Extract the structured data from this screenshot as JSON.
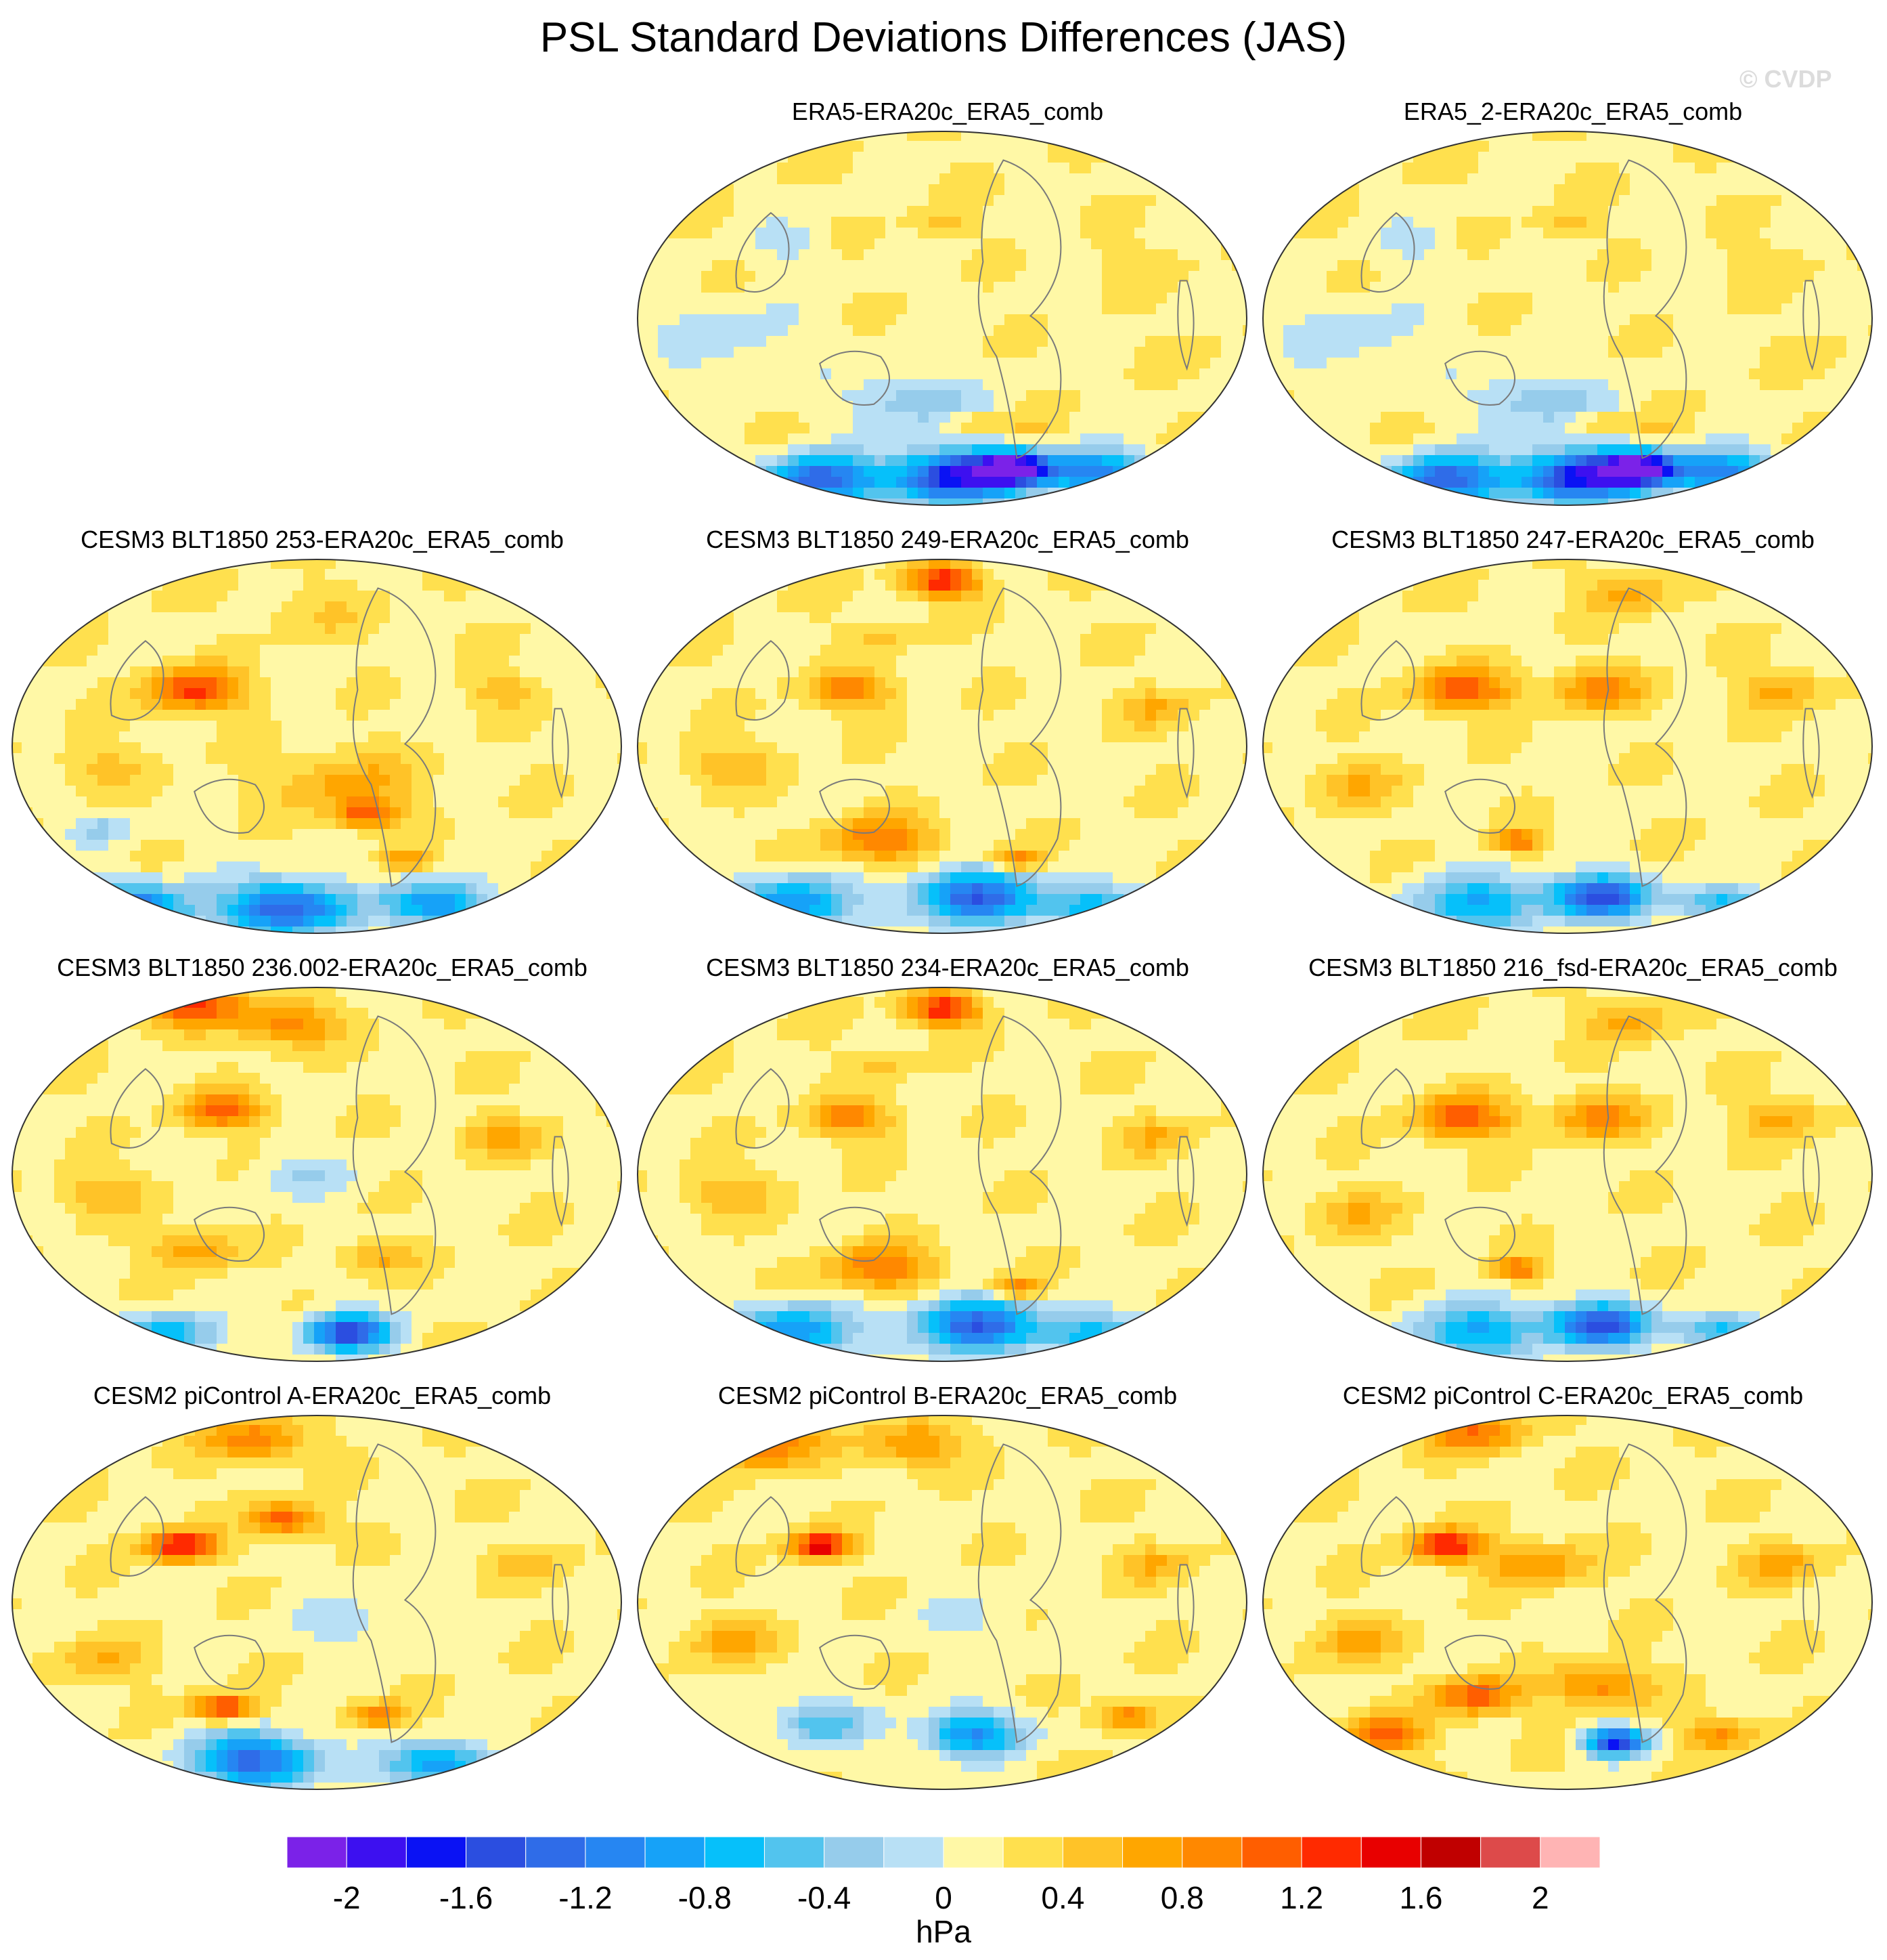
{
  "title": "PSL Standard Deviations Differences (JAS)",
  "watermark": "© CVDP",
  "colorbar": {
    "unit": "hPa",
    "tick_labels": [
      "-2",
      "-1.6",
      "-1.2",
      "-0.8",
      "-0.4",
      "0",
      "0.4",
      "0.8",
      "1.2",
      "1.6",
      "2"
    ],
    "colors": [
      "#7b22e8",
      "#3d10f0",
      "#0a12f4",
      "#2b4ee0",
      "#2f6ce8",
      "#2686f2",
      "#16a2f8",
      "#06c0fa",
      "#52c4ee",
      "#96cceb",
      "#b8e0f5",
      "#fff8a6",
      "#ffe04e",
      "#ffc328",
      "#ffa600",
      "#ff8800",
      "#ff5e00",
      "#ff2a00",
      "#e80000",
      "#c00000",
      "#dd4a4a",
      "#ffb4b4"
    ]
  },
  "chart_data": {
    "type": "heatmap",
    "title": "PSL Standard Deviations Differences (JAS)",
    "unit": "hPa",
    "levels": [
      -2.2,
      -2,
      -1.8,
      -1.6,
      -1.4,
      -1.2,
      -1,
      -0.8,
      -0.6,
      -0.4,
      -0.2,
      0,
      0.2,
      0.4,
      0.6,
      0.8,
      1,
      1.2,
      1.4,
      1.6,
      1.8,
      2
    ],
    "panels": [
      {
        "title": "ERA5-ERA20c_ERA5_comb",
        "pattern": "era"
      },
      {
        "title": "ERA5_2-ERA20c_ERA5_comb",
        "pattern": "era"
      },
      {
        "title": "CESM3 BLT1850 253-ERA20c_ERA5_comb",
        "pattern": "model_a"
      },
      {
        "title": "CESM3 BLT1850 249-ERA20c_ERA5_comb",
        "pattern": "model_b"
      },
      {
        "title": "CESM3 BLT1850 247-ERA20c_ERA5_comb",
        "pattern": "model_c"
      },
      {
        "title": "CESM3 BLT1850 236.002-ERA20c_ERA5_comb",
        "pattern": "model_d"
      },
      {
        "title": "CESM3 BLT1850 234-ERA20c_ERA5_comb",
        "pattern": "model_b"
      },
      {
        "title": "CESM3 BLT1850 216_fsd-ERA20c_ERA5_comb",
        "pattern": "model_c"
      },
      {
        "title": "CESM2 piControl A-ERA20c_ERA5_comb",
        "pattern": "pic_a"
      },
      {
        "title": "CESM2 piControl B-ERA20c_ERA5_comb",
        "pattern": "pic_b"
      },
      {
        "title": "CESM2 piControl C-ERA20c_ERA5_comb",
        "pattern": "pic_c"
      }
    ]
  }
}
